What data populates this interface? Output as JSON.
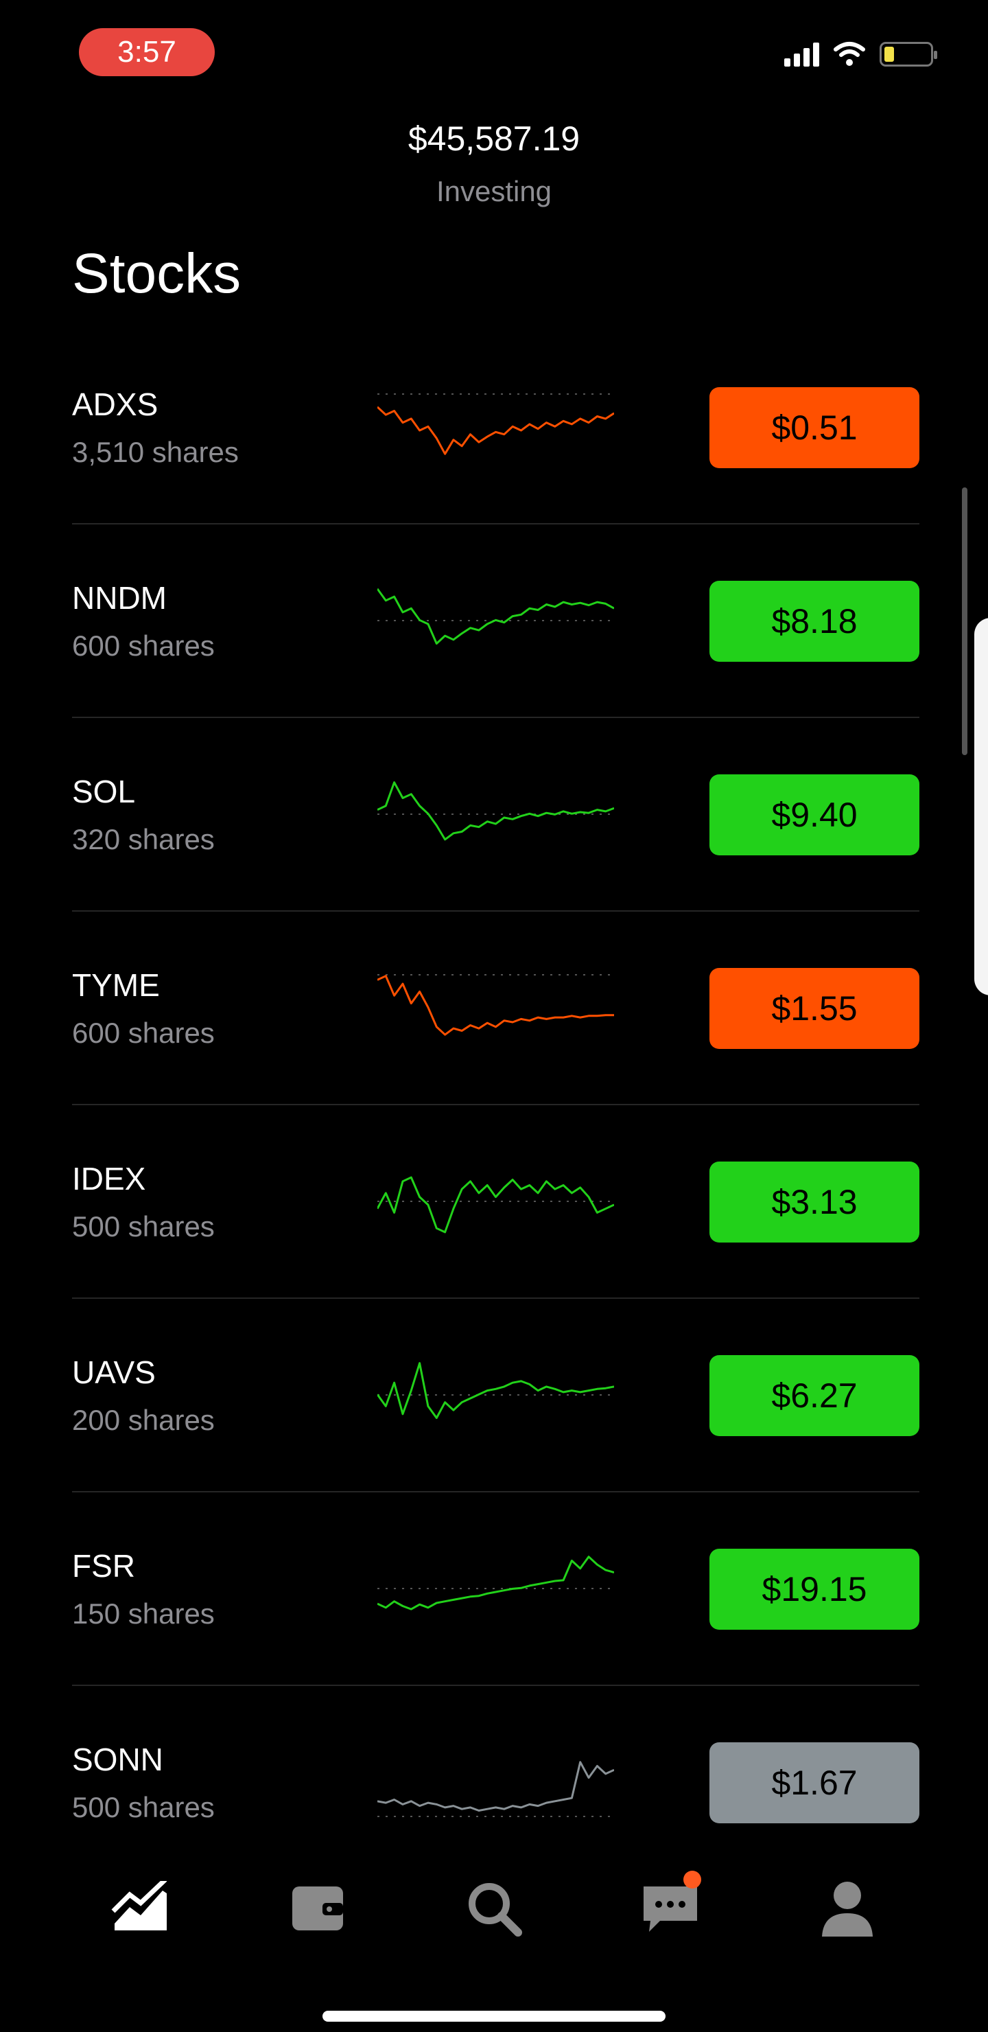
{
  "status": {
    "time": "3:57"
  },
  "header": {
    "balance": "$45,587.19",
    "subtitle": "Investing"
  },
  "section_title": "Stocks",
  "colors": {
    "up": "#22d11a",
    "down": "#ff5000",
    "neutral": "#8a9297"
  },
  "stocks": [
    {
      "symbol": "ADXS",
      "shares": "3,510 shares",
      "price": "$0.51",
      "trend": "down",
      "spark": [
        0.2,
        0.3,
        0.25,
        0.4,
        0.35,
        0.5,
        0.45,
        0.6,
        0.8,
        0.62,
        0.7,
        0.55,
        0.65,
        0.58,
        0.52,
        0.55,
        0.45,
        0.5,
        0.42,
        0.48,
        0.4,
        0.45,
        0.38,
        0.42,
        0.35,
        0.4,
        0.32,
        0.35,
        0.28
      ]
    },
    {
      "symbol": "NNDM",
      "shares": "600 shares",
      "price": "$8.18",
      "trend": "up",
      "spark": [
        0.05,
        0.2,
        0.15,
        0.35,
        0.3,
        0.45,
        0.5,
        0.75,
        0.65,
        0.7,
        0.62,
        0.55,
        0.58,
        0.5,
        0.45,
        0.48,
        0.4,
        0.38,
        0.3,
        0.32,
        0.25,
        0.28,
        0.22,
        0.25,
        0.23,
        0.26,
        0.22,
        0.24,
        0.3
      ]
    },
    {
      "symbol": "SOL",
      "shares": "320 shares",
      "price": "$9.40",
      "trend": "up",
      "spark": [
        0.4,
        0.35,
        0.05,
        0.25,
        0.2,
        0.35,
        0.45,
        0.6,
        0.78,
        0.7,
        0.68,
        0.6,
        0.62,
        0.55,
        0.58,
        0.5,
        0.52,
        0.48,
        0.45,
        0.48,
        0.44,
        0.46,
        0.42,
        0.45,
        0.43,
        0.44,
        0.4,
        0.42,
        0.38
      ]
    },
    {
      "symbol": "TYME",
      "shares": "600 shares",
      "price": "$1.55",
      "trend": "down",
      "spark": [
        0.1,
        0.05,
        0.3,
        0.15,
        0.4,
        0.25,
        0.45,
        0.7,
        0.8,
        0.72,
        0.75,
        0.68,
        0.72,
        0.65,
        0.7,
        0.62,
        0.64,
        0.6,
        0.62,
        0.58,
        0.6,
        0.58,
        0.58,
        0.56,
        0.58,
        0.56,
        0.56,
        0.55,
        0.55
      ]
    },
    {
      "symbol": "IDEX",
      "shares": "500 shares",
      "price": "$3.13",
      "trend": "up",
      "spark": [
        0.55,
        0.35,
        0.6,
        0.2,
        0.15,
        0.4,
        0.5,
        0.8,
        0.85,
        0.55,
        0.3,
        0.2,
        0.35,
        0.25,
        0.4,
        0.28,
        0.18,
        0.3,
        0.25,
        0.35,
        0.2,
        0.3,
        0.25,
        0.35,
        0.28,
        0.4,
        0.6,
        0.55,
        0.5
      ]
    },
    {
      "symbol": "UAVS",
      "shares": "200 shares",
      "price": "$6.27",
      "trend": "up",
      "spark": [
        0.45,
        0.6,
        0.3,
        0.7,
        0.4,
        0.05,
        0.6,
        0.75,
        0.55,
        0.65,
        0.55,
        0.5,
        0.45,
        0.4,
        0.38,
        0.35,
        0.3,
        0.28,
        0.32,
        0.4,
        0.35,
        0.38,
        0.42,
        0.4,
        0.42,
        0.4,
        0.38,
        0.37,
        0.35
      ]
    },
    {
      "symbol": "FSR",
      "shares": "150 shares",
      "price": "$19.15",
      "trend": "up",
      "spark": [
        0.65,
        0.7,
        0.62,
        0.68,
        0.72,
        0.66,
        0.7,
        0.64,
        0.62,
        0.6,
        0.58,
        0.56,
        0.55,
        0.52,
        0.5,
        0.48,
        0.46,
        0.45,
        0.42,
        0.4,
        0.38,
        0.36,
        0.35,
        0.1,
        0.2,
        0.05,
        0.15,
        0.22,
        0.25
      ]
    },
    {
      "symbol": "SONN",
      "shares": "500 shares",
      "price": "$1.67",
      "trend": "neutral",
      "spark": [
        0.7,
        0.72,
        0.68,
        0.74,
        0.7,
        0.76,
        0.72,
        0.74,
        0.78,
        0.76,
        0.8,
        0.78,
        0.82,
        0.8,
        0.78,
        0.8,
        0.76,
        0.78,
        0.74,
        0.76,
        0.72,
        0.7,
        0.68,
        0.66,
        0.2,
        0.4,
        0.25,
        0.35,
        0.3
      ]
    }
  ],
  "tabs": [
    {
      "icon": "trend-chart-icon",
      "active": true
    },
    {
      "icon": "wallet-icon",
      "active": false
    },
    {
      "icon": "search-icon",
      "active": false
    },
    {
      "icon": "messages-icon",
      "active": false,
      "badge": true
    },
    {
      "icon": "account-icon",
      "active": false
    }
  ]
}
